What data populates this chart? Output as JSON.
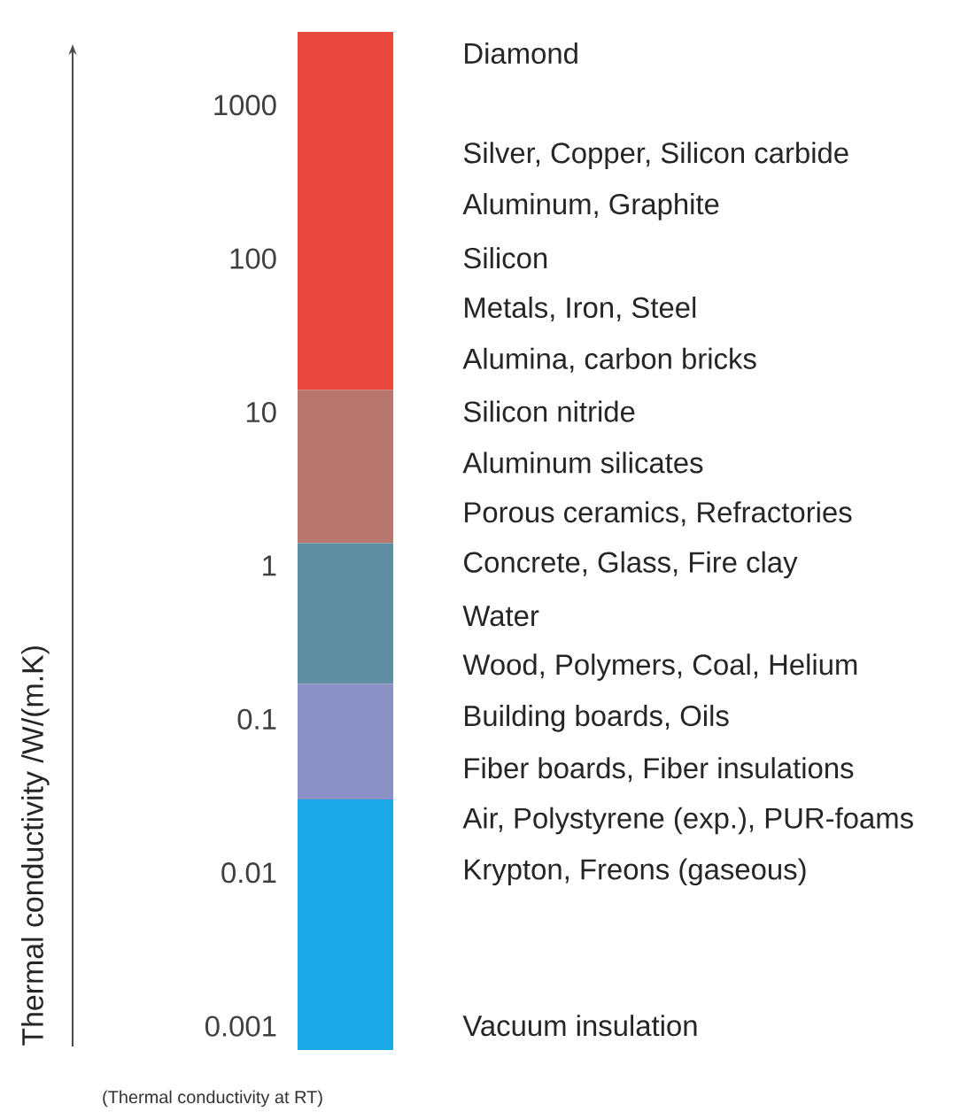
{
  "chart_data": {
    "type": "bar",
    "log": "y",
    "ylim": [
      0.0007,
      3000
    ],
    "yticks": [
      0.001,
      0.01,
      0.1,
      1,
      10,
      100,
      1000
    ],
    "categories": [
      null
    ],
    "series": [
      {
        "color": "#e8483e",
        "base": [
          14
        ],
        "values": [
          2986
        ]
      },
      {
        "color": "#b7766e",
        "base": [
          1.4
        ],
        "values": [
          12.6
        ]
      },
      {
        "color": "#5f8da2",
        "base": [
          0.17
        ],
        "values": [
          1.23
        ]
      },
      {
        "color": "#8b91c4",
        "base": [
          0.03
        ],
        "values": [
          0.14
        ]
      },
      {
        "color": "#1ba8e6",
        "base": [
          0.0007
        ],
        "values": [
          0.0293
        ]
      }
    ],
    "annotations": [
      "Diamond",
      "Silver, Copper, Silicon carbide",
      "Aluminum, Graphite",
      "Silicon",
      "Metals, Iron, Steel",
      "Alumina, carbon bricks",
      "Silicon nitride",
      "Aluminum silicates",
      "Porous ceramics, Refractories",
      "Concrete, Glass, Fire clay",
      "Water",
      "Wood, Polymers, Coal, Helium",
      "Building boards, Oils",
      "Fiber boards, Fiber insulations",
      "Air, Polystyrene (exp.), PUR-foams",
      "Krypton, Freons (gaseous)",
      "Vacuum insulation",
      "Thermal conductivity  /W/(m.K)",
      "(Thermal conductivity at RT)"
    ]
  }
}
